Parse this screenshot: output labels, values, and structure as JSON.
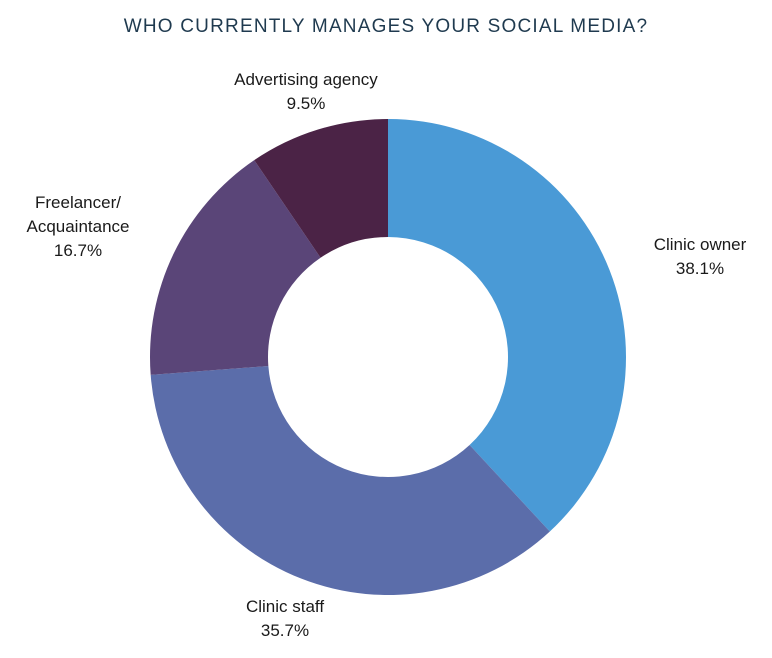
{
  "chart_data": {
    "type": "pie",
    "title": "WHO CURRENTLY MANAGES YOUR SOCIAL MEDIA?",
    "donut": true,
    "slices": [
      {
        "label": [
          "Clinic owner"
        ],
        "value_label": "38.1%",
        "value": 38.1,
        "color": "#4a9ad6"
      },
      {
        "label": [
          "Clinic staff"
        ],
        "value_label": "35.7%",
        "value": 35.7,
        "color": "#5b6daa"
      },
      {
        "label": [
          "Freelancer/",
          "Acquaintance"
        ],
        "value_label": "16.7%",
        "value": 16.7,
        "color": "#5a4578"
      },
      {
        "label": [
          "Advertising agency"
        ],
        "value_label": "9.5%",
        "value": 9.5,
        "color": "#4b2346"
      }
    ]
  }
}
